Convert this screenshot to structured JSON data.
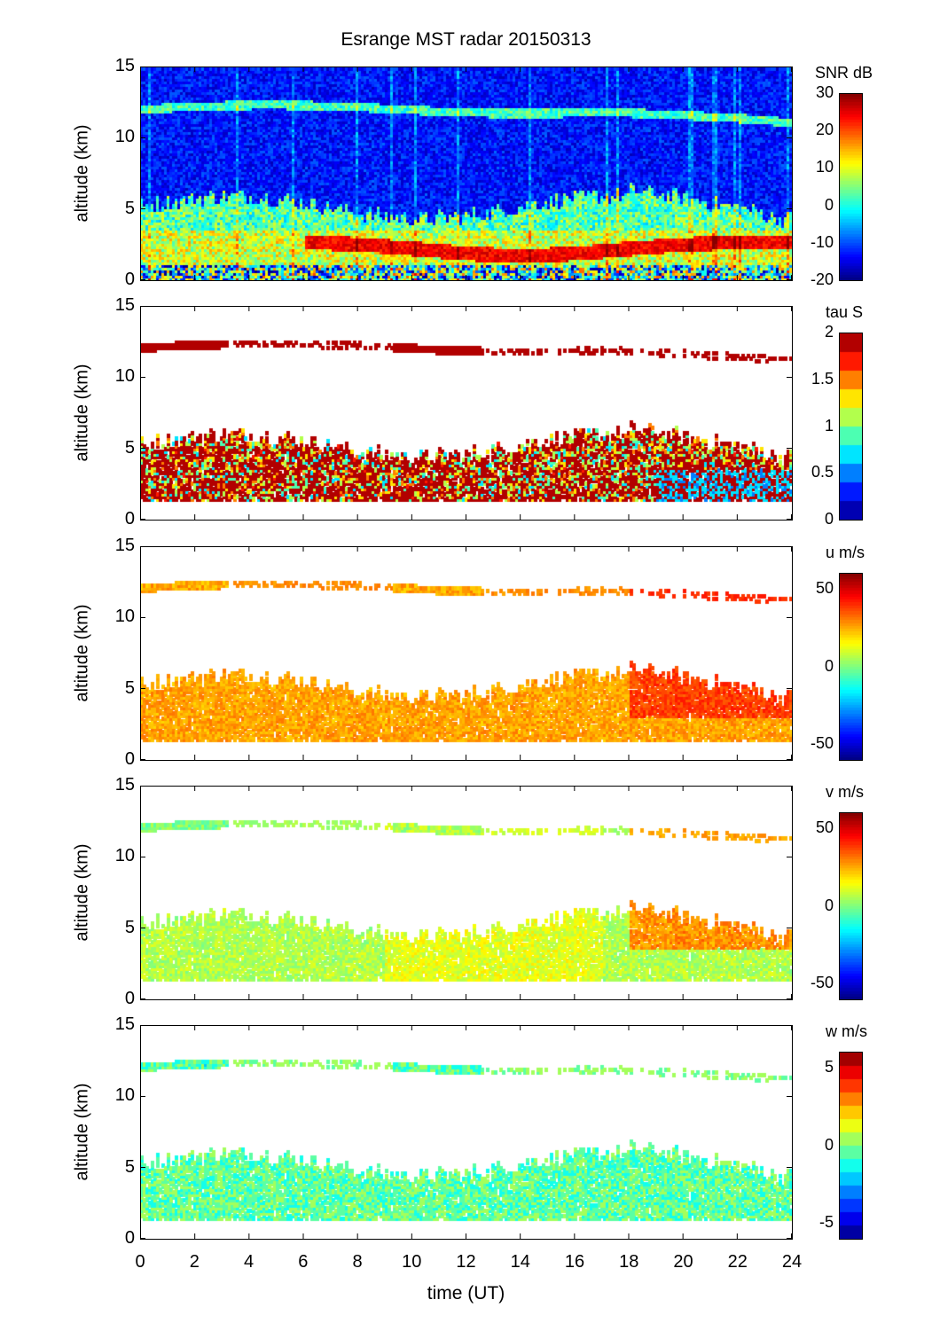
{
  "chart_data": {
    "type": "heatmap",
    "title": "Esrange MST radar 20150313",
    "xlabel": "time (UT)",
    "xlim": [
      0,
      24
    ],
    "xticks": [
      "0",
      "2",
      "4",
      "6",
      "8",
      "10",
      "12",
      "14",
      "16",
      "18",
      "20",
      "22",
      "24"
    ],
    "panels": [
      {
        "id": "snr",
        "ylabel": "altitude (km)",
        "ylim": [
          0,
          15
        ],
        "yticks": [
          "0",
          "5",
          "10",
          "15"
        ],
        "colorbar": {
          "label": "SNR dB",
          "range": [
            -20,
            30
          ],
          "ticks": [
            "30",
            "20",
            "10",
            "0",
            "-10",
            "-20"
          ],
          "levels": 64
        },
        "description_values": {
          "background": -13,
          "tropopause_layer": 2,
          "boundary_layer": 10,
          "strong_layer_1_3km": 25
        }
      },
      {
        "id": "tau",
        "ylabel": "altitude (km)",
        "ylim": [
          0,
          15
        ],
        "yticks": [
          "0",
          "5",
          "10",
          "15"
        ],
        "colorbar": {
          "label": "tau S",
          "range": [
            0,
            2
          ],
          "ticks": [
            "2",
            "1.5",
            "1",
            "0.5",
            "0"
          ],
          "levels": 10
        },
        "description_values": {
          "typical": 1.9,
          "late_low_layer": 0.6
        }
      },
      {
        "id": "u",
        "ylabel": "altitude (km)",
        "ylim": [
          0,
          15
        ],
        "yticks": [
          "0",
          "5",
          "10",
          "15"
        ],
        "colorbar": {
          "label": "u m/s",
          "range": [
            -60,
            60
          ],
          "ticks": [
            "50",
            "0",
            "-50"
          ],
          "levels": 64
        },
        "description_values": {
          "typical": 25,
          "late_upper": 40
        }
      },
      {
        "id": "v",
        "ylabel": "altitude (km)",
        "ylim": [
          0,
          15
        ],
        "yticks": [
          "0",
          "5",
          "10",
          "15"
        ],
        "colorbar": {
          "label": "v m/s",
          "range": [
            -60,
            60
          ],
          "ticks": [
            "50",
            "0",
            "-50"
          ],
          "levels": 64
        },
        "description_values": {
          "typical": 5,
          "late_upper": 30
        }
      },
      {
        "id": "w",
        "ylabel": "altitude (km)",
        "ylim": [
          0,
          15
        ],
        "yticks": [
          "0",
          "5",
          "10",
          "15"
        ],
        "colorbar": {
          "label": "w m/s",
          "range": [
            -6,
            6
          ],
          "ticks": [
            "5",
            "0",
            "-5"
          ],
          "levels": 14
        },
        "description_values": {
          "typical": -0.5
        }
      }
    ],
    "echo_regions_km": {
      "tropopause": {
        "start_alt": 12.0,
        "end_alt": 10.8,
        "time_range": [
          0,
          23.5
        ]
      },
      "lower_troposphere": {
        "bottom": 1.5,
        "top_range": [
          4.5,
          6.5
        ],
        "time_range": [
          0,
          24
        ]
      }
    }
  }
}
